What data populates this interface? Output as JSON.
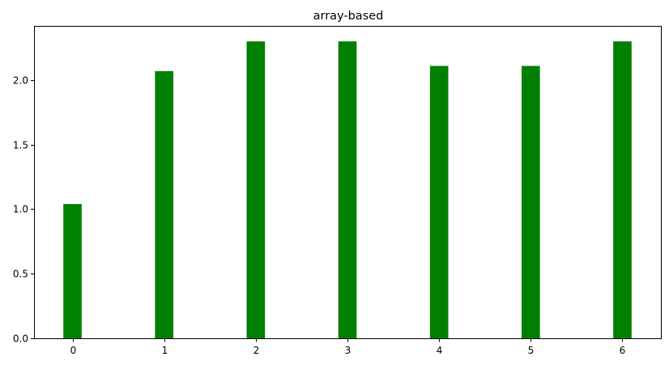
{
  "chart_data": {
    "type": "bar",
    "title": "array-based",
    "xlabel": "",
    "ylabel": "",
    "categories": [
      "0",
      "1",
      "2",
      "3",
      "4",
      "5",
      "6"
    ],
    "x": [
      0,
      1,
      2,
      3,
      4,
      5,
      6
    ],
    "values": [
      1.04,
      2.07,
      2.3,
      2.3,
      2.11,
      2.11,
      2.3
    ],
    "bar_color": "#008000",
    "xlim": [
      -0.42,
      6.42
    ],
    "ylim": [
      0,
      2.42
    ],
    "yticks": [
      0.0,
      0.5,
      1.0,
      1.5,
      2.0,
      2.5
    ],
    "ytick_labels": [
      "0.0",
      "0.5",
      "1.0",
      "1.5",
      "2.0",
      "2.5"
    ],
    "grid": false,
    "legend": "none"
  }
}
